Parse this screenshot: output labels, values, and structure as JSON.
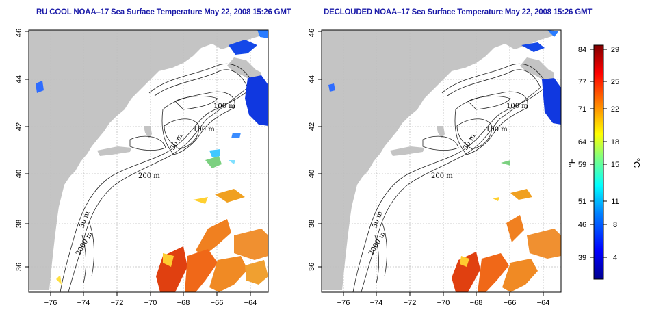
{
  "panels": [
    {
      "id": "left",
      "title": "RU COOL NOAA–17 Sea Surface Temperature May 22, 2008 15:26 GMT",
      "contour_labels": [
        "100 m",
        "100 m",
        "50 m",
        "200 m",
        "50 m",
        "2000 m"
      ]
    },
    {
      "id": "right",
      "title": "DECLOUDED NOAA–17 Sea Surface Temperature May 22, 2008 15:26 GMT",
      "contour_labels": [
        "100 m",
        "100 m",
        "50 m",
        "200 m",
        "50 m",
        "2000 m"
      ]
    }
  ],
  "x_ticks": [
    "−76",
    "−74",
    "−72",
    "−70",
    "−68",
    "−66",
    "−64"
  ],
  "y_ticks": [
    "36",
    "38",
    "40",
    "42",
    "44",
    "46"
  ],
  "colorbar": {
    "fahrenheit_unit": "°F",
    "celsius_unit": "°C",
    "fahrenheit_ticks": [
      "84",
      "77",
      "71",
      "64",
      "59",
      "51",
      "46",
      "39"
    ],
    "celsius_ticks": [
      "29",
      "25",
      "22",
      "18",
      "15",
      "11",
      "8",
      "4"
    ],
    "celsius_range": [
      0,
      30
    ],
    "colors": [
      "#00008f",
      "#0000ff",
      "#0080ff",
      "#00ffff",
      "#80ff80",
      "#ffff00",
      "#ff8000",
      "#ff0000",
      "#800000"
    ]
  },
  "colors": {
    "land": "#c4c4c4",
    "sea": "#ffffff",
    "title": "#1a1aa8",
    "grid": "#bdbdbd"
  }
}
